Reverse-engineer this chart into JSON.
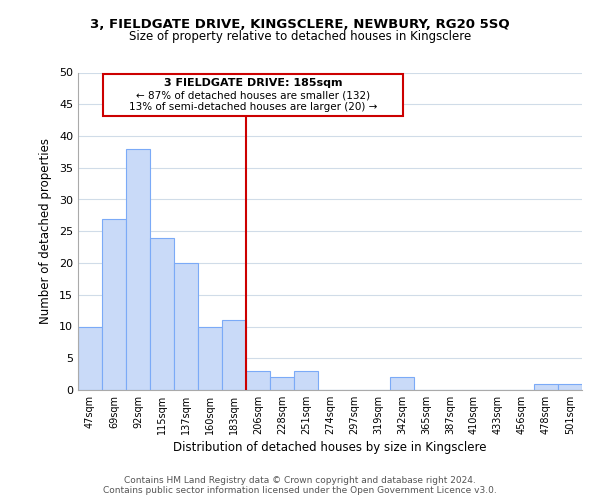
{
  "title1": "3, FIELDGATE DRIVE, KINGSCLERE, NEWBURY, RG20 5SQ",
  "title2": "Size of property relative to detached houses in Kingsclere",
  "xlabel": "Distribution of detached houses by size in Kingsclere",
  "ylabel": "Number of detached properties",
  "bar_labels": [
    "47sqm",
    "69sqm",
    "92sqm",
    "115sqm",
    "137sqm",
    "160sqm",
    "183sqm",
    "206sqm",
    "228sqm",
    "251sqm",
    "274sqm",
    "297sqm",
    "319sqm",
    "342sqm",
    "365sqm",
    "387sqm",
    "410sqm",
    "433sqm",
    "456sqm",
    "478sqm",
    "501sqm"
  ],
  "bar_values": [
    10,
    27,
    38,
    24,
    20,
    10,
    11,
    3,
    2,
    3,
    0,
    0,
    0,
    2,
    0,
    0,
    0,
    0,
    0,
    1,
    1
  ],
  "bar_color": "#c9daf8",
  "bar_edge_color": "#7baaf7",
  "vertical_line_x": 6,
  "vertical_line_color": "#cc0000",
  "annotation_title": "3 FIELDGATE DRIVE: 185sqm",
  "annotation_line1": "← 87% of detached houses are smaller (132)",
  "annotation_line2": "13% of semi-detached houses are larger (20) →",
  "annotation_box_color": "#ffffff",
  "annotation_box_edge": "#cc0000",
  "ylim": [
    0,
    50
  ],
  "yticks": [
    0,
    5,
    10,
    15,
    20,
    25,
    30,
    35,
    40,
    45,
    50
  ],
  "footer1": "Contains HM Land Registry data © Crown copyright and database right 2024.",
  "footer2": "Contains public sector information licensed under the Open Government Licence v3.0.",
  "background_color": "#ffffff",
  "grid_color": "#d0dce8"
}
